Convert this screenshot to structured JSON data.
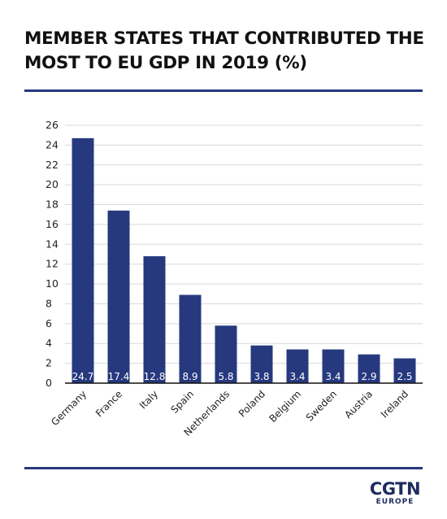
{
  "title": "MEMBER STATES THAT CONTRIBUTED THE MOST TO EU GDP IN 2019 (%)",
  "logo": {
    "main": "CGTN",
    "sub": "EUROPE"
  },
  "colors": {
    "bar": "#26397f",
    "rule": "#26397f",
    "grid": "#d9d9d9",
    "axis": "#111111",
    "text": "#222222"
  },
  "chart_data": {
    "type": "bar",
    "title": "MEMBER STATES THAT CONTRIBUTED THE MOST TO EU GDP IN 2019 (%)",
    "xlabel": "",
    "ylabel": "",
    "categories": [
      "Germany",
      "France",
      "Italy",
      "Spain",
      "Netherlands",
      "Poland",
      "Belgium",
      "Sweden",
      "Austria",
      "Ireland"
    ],
    "values": [
      24.7,
      17.4,
      12.8,
      8.9,
      5.8,
      3.8,
      3.4,
      3.4,
      2.9,
      2.5
    ],
    "value_labels": [
      "24.7",
      "17.4",
      "12.8",
      "8.9",
      "5.8",
      "3.8",
      "3.4",
      "3.4",
      "2.9",
      "2.5"
    ],
    "yticks": [
      0,
      2,
      4,
      6,
      8,
      10,
      12,
      14,
      16,
      18,
      20,
      22,
      24,
      26
    ],
    "ylim": [
      0,
      26
    ],
    "grid": true,
    "legend": "none"
  }
}
